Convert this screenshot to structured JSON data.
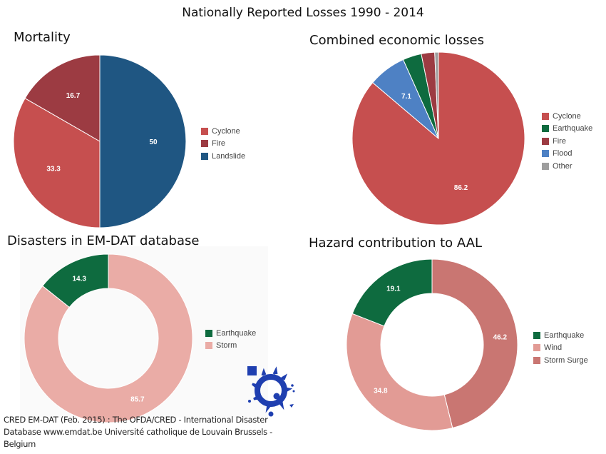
{
  "page_title": "Nationally Reported Losses 1990 - 2014",
  "source_text": "CRED EM-DAT (Feb. 2015) : The OFDA/CRED - International Disaster Database www.emdat.be Université catholique de Louvain Brussels - Belgium",
  "logo_icon": "cred-splash-logo-icon",
  "chart_data": [
    {
      "id": "mortality",
      "type": "pie",
      "title": "Mortality",
      "donut": false,
      "legend_position": "right",
      "slices": [
        {
          "label": "Cyclone",
          "value": 33.3,
          "display": "33.3",
          "color": "#c64f4f"
        },
        {
          "label": "Fire",
          "value": 16.7,
          "display": "16.7",
          "color": "#9c3b42"
        },
        {
          "label": "Landslide",
          "value": 50,
          "display": "50",
          "color": "#1f5682"
        }
      ],
      "draw_order": [
        "Landslide",
        "Cyclone",
        "Fire"
      ]
    },
    {
      "id": "economic",
      "type": "pie",
      "title": "Combined economic losses",
      "donut": false,
      "legend_position": "right",
      "slices": [
        {
          "label": "Cyclone",
          "value": 86.2,
          "display": "86.2",
          "color": "#c64f4f"
        },
        {
          "label": "Earthquake",
          "value": 3.5,
          "display": "",
          "color": "#0e6b3f"
        },
        {
          "label": "Fire",
          "value": 2.5,
          "display": "",
          "color": "#9c3b42"
        },
        {
          "label": "Flood",
          "value": 7.1,
          "display": "7.1",
          "color": "#4e81c4"
        },
        {
          "label": "Other",
          "value": 0.7,
          "display": "",
          "color": "#9e9e9e"
        }
      ],
      "draw_order": [
        "Cyclone",
        "Flood",
        "Earthquake",
        "Fire",
        "Other"
      ]
    },
    {
      "id": "disasters",
      "type": "pie",
      "title": "Disasters in EM-DAT database",
      "donut": true,
      "legend_position": "right",
      "slices": [
        {
          "label": "Earthquake",
          "value": 14.3,
          "display": "14.3",
          "color": "#0e6b3f"
        },
        {
          "label": "Storm",
          "value": 85.7,
          "display": "85.7",
          "color": "#eaaca6"
        }
      ],
      "draw_order": [
        "Storm",
        "Earthquake"
      ]
    },
    {
      "id": "aal",
      "type": "pie",
      "title": "Hazard contribution to AAL",
      "donut": true,
      "legend_position": "right",
      "slices": [
        {
          "label": "Earthquake",
          "value": 19.1,
          "display": "19.1",
          "color": "#0e6b3f"
        },
        {
          "label": "Wind",
          "value": 34.8,
          "display": "34.8",
          "color": "#e29b95"
        },
        {
          "label": "Storm Surge",
          "value": 46.2,
          "display": "46.2",
          "color": "#c97672"
        }
      ],
      "draw_order": [
        "Storm Surge",
        "Wind",
        "Earthquake"
      ]
    }
  ]
}
